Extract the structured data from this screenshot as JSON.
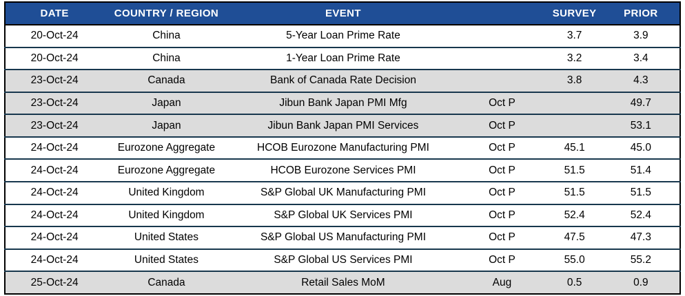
{
  "table": {
    "columns": [
      {
        "key": "date",
        "label": "DATE"
      },
      {
        "key": "country",
        "label": "COUNTRY / REGION"
      },
      {
        "key": "event",
        "label": "EVENT"
      },
      {
        "key": "period",
        "label": ""
      },
      {
        "key": "survey",
        "label": "SURVEY"
      },
      {
        "key": "prior",
        "label": "PRIOR"
      }
    ],
    "rows": [
      {
        "date": "20-Oct-24",
        "country": "China",
        "event": "5-Year Loan Prime Rate",
        "period": "",
        "survey": "3.7",
        "prior": "3.9",
        "shaded": false
      },
      {
        "date": "20-Oct-24",
        "country": "China",
        "event": "1-Year Loan Prime Rate",
        "period": "",
        "survey": "3.2",
        "prior": "3.4",
        "shaded": false
      },
      {
        "date": "23-Oct-24",
        "country": "Canada",
        "event": "Bank of Canada Rate Decision",
        "period": "",
        "survey": "3.8",
        "prior": "4.3",
        "shaded": true
      },
      {
        "date": "23-Oct-24",
        "country": "Japan",
        "event": "Jibun Bank Japan PMI Mfg",
        "period": "Oct P",
        "survey": "",
        "prior": "49.7",
        "shaded": true
      },
      {
        "date": "23-Oct-24",
        "country": "Japan",
        "event": "Jibun Bank Japan PMI Services",
        "period": "Oct P",
        "survey": "",
        "prior": "53.1",
        "shaded": true
      },
      {
        "date": "24-Oct-24",
        "country": "Eurozone Aggregate",
        "event": "HCOB Eurozone Manufacturing PMI",
        "period": "Oct P",
        "survey": "45.1",
        "prior": "45.0",
        "shaded": false
      },
      {
        "date": "24-Oct-24",
        "country": "Eurozone Aggregate",
        "event": "HCOB Eurozone Services PMI",
        "period": "Oct P",
        "survey": "51.5",
        "prior": "51.4",
        "shaded": false
      },
      {
        "date": "24-Oct-24",
        "country": "United Kingdom",
        "event": "S&P Global UK Manufacturing PMI",
        "period": "Oct P",
        "survey": "51.5",
        "prior": "51.5",
        "shaded": false
      },
      {
        "date": "24-Oct-24",
        "country": "United Kingdom",
        "event": "S&P Global UK Services PMI",
        "period": "Oct P",
        "survey": "52.4",
        "prior": "52.4",
        "shaded": false
      },
      {
        "date": "24-Oct-24",
        "country": "United States",
        "event": "S&P Global US Manufacturing PMI",
        "period": "Oct P",
        "survey": "47.5",
        "prior": "47.3",
        "shaded": false
      },
      {
        "date": "24-Oct-24",
        "country": "United States",
        "event": "S&P Global US Services PMI",
        "period": "Oct P",
        "survey": "55.0",
        "prior": "55.2",
        "shaded": false
      },
      {
        "date": "25-Oct-24",
        "country": "Canada",
        "event": "Retail Sales MoM",
        "period": "Aug",
        "survey": "0.5",
        "prior": "0.9",
        "shaded": true
      }
    ]
  },
  "colors": {
    "header_bg": "#1f4e96",
    "header_text": "#ffffff",
    "row_shaded_bg": "#dcdcdc",
    "row_plain_bg": "#ffffff",
    "row_divider": "#17374d",
    "outer_border": "#000000",
    "body_text": "#000000"
  }
}
